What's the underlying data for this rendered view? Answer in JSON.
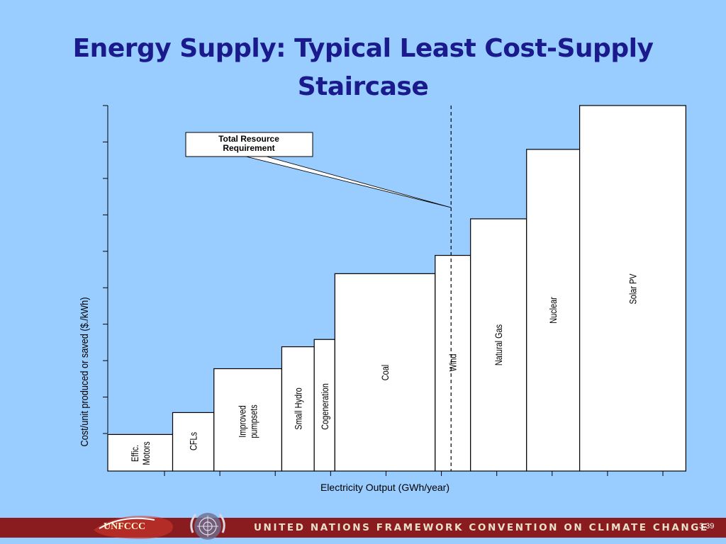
{
  "slide": {
    "title_line1": "Energy Supply: Typical Least Cost-Supply",
    "title_line2": "Staircase",
    "footer_text": "UNITED NATIONS FRAMEWORK CONVENTION ON CLIMATE CHANGE",
    "page_number": "3.39",
    "logo_unfccc_text": "UNFCCC",
    "colors": {
      "background": "#99ccff",
      "title": "#1a1a8c",
      "footer_bar": "#8a1c1f",
      "footer_text": "#e8e0c8"
    },
    "icons": [
      "unfccc-logo-icon",
      "un-emblem-icon"
    ]
  },
  "chart_data": {
    "type": "bar",
    "subtype": "supply-staircase",
    "title": "",
    "xlabel": "Electricity Output (GWh/year)",
    "ylabel": "Cost/unit produced or saved ($./kWh)",
    "grid": false,
    "legend": "none",
    "x_tick_count": 10,
    "y_tick_count": 10,
    "xlim": [
      0,
      100
    ],
    "ylim": [
      0,
      100
    ],
    "bars": [
      {
        "label": "Effic. Motors",
        "label_lines": [
          "Effic.",
          "Motors"
        ],
        "x0": 0,
        "x1": 11,
        "value": 10
      },
      {
        "label": "CFLs",
        "label_lines": [
          "CFLs"
        ],
        "x0": 11,
        "x1": 18,
        "value": 16
      },
      {
        "label": "Improved pumpsets",
        "label_lines": [
          "Improved",
          "pumpsets"
        ],
        "x0": 18,
        "x1": 29.5,
        "value": 28
      },
      {
        "label": "Small Hydro",
        "label_lines": [
          "Small Hydro"
        ],
        "x0": 29.5,
        "x1": 35,
        "value": 34
      },
      {
        "label": "Cogeneration",
        "label_lines": [
          "Cogeneration"
        ],
        "x0": 35,
        "x1": 38.5,
        "value": 36
      },
      {
        "label": "Coal",
        "label_lines": [
          "Coal"
        ],
        "x0": 38.5,
        "x1": 55.5,
        "value": 54
      },
      {
        "label": "Wind",
        "label_lines": [
          "Wind"
        ],
        "x0": 55.5,
        "x1": 61.5,
        "value": 59
      },
      {
        "label": "Natural Gas",
        "label_lines": [
          "Natural Gas"
        ],
        "x0": 61.5,
        "x1": 71,
        "value": 69
      },
      {
        "label": "Nuclear",
        "label_lines": [
          "Nuclear"
        ],
        "x0": 71,
        "x1": 80,
        "value": 88
      },
      {
        "label": "Solar PV",
        "label_lines": [
          "Solar PV"
        ],
        "x0": 80,
        "x1": 98,
        "value": 100
      }
    ],
    "reference_line": {
      "x": 58.2,
      "style": "dashed"
    },
    "annotation": {
      "label": "Total Resource Requirement",
      "label_lines": [
        "Total Resource",
        "Requirement"
      ],
      "points_to": {
        "x": 58.2,
        "y": 72
      }
    }
  }
}
